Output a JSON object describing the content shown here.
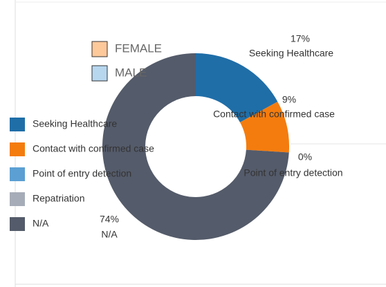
{
  "chart_data": {
    "type": "donut",
    "categories": [
      "Seeking Healthcare",
      "Contact with confirmed case",
      "Point of entry detection",
      "Repatriation",
      "N/A"
    ],
    "values": [
      17,
      9,
      0,
      0,
      74
    ],
    "value_labels": [
      "17%",
      "9%",
      "0%",
      null,
      "74%"
    ],
    "colors": [
      "#1f6ea8",
      "#f47c0e",
      "#5b9fd3",
      "#a6adb8",
      "#545b6a"
    ],
    "legend": "left",
    "overlay_legend": [
      {
        "name": "FEMALE",
        "color": "#fdc99b"
      },
      {
        "name": "MALE",
        "color": "#b7d7ef"
      }
    ]
  }
}
